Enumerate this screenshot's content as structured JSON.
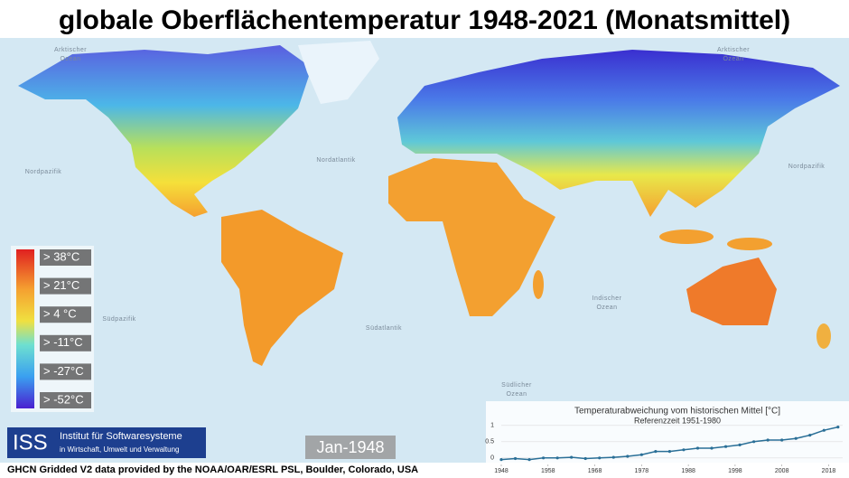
{
  "title": "globale Oberflächentemperatur 1948-2021 (Monatsmittel)",
  "map_labels": [
    [
      "Arktischer",
      "Ozean"
    ],
    [
      "Arktischer",
      "Ozean"
    ],
    [
      "Nordpazifik"
    ],
    [
      "Nordpazifik"
    ],
    [
      "Nordatlantik"
    ],
    [
      "Südpazifik"
    ],
    [
      "Südatlantik"
    ],
    [
      "Indischer",
      "Ozean"
    ],
    [
      "Südlicher",
      "Ozean"
    ]
  ],
  "legend": {
    "labels": [
      "> 38°C",
      "> 21°C",
      "> 4 °C",
      "> -11°C",
      "> -27°C",
      "> -52°C"
    ]
  },
  "logo": {
    "short": "ISS",
    "lines": [
      "Institut für Softwaresysteme",
      "in Wirtschaft, Umwelt und Verwaltung"
    ]
  },
  "date": "Jan-1948",
  "credit": "GHCN Gridded V2 data provided by the NOAA/OAR/ESRL PSL, Boulder, Colorado, USA",
  "chart_data": {
    "type": "line",
    "title": "Temperaturabweichung vom historischen Mittel [°C]",
    "subtitle": "Referenzzeit 1951-1980",
    "x": [
      1948,
      1951,
      1954,
      1957,
      1960,
      1963,
      1966,
      1969,
      1972,
      1975,
      1978,
      1981,
      1984,
      1987,
      1990,
      1993,
      1996,
      1999,
      2002,
      2005,
      2008,
      2011,
      2014,
      2017,
      2020
    ],
    "series": [
      {
        "color": "#2a6f97",
        "values": [
          -0.05,
          -0.02,
          -0.05,
          0.0,
          0.0,
          0.02,
          -0.02,
          0.0,
          0.02,
          0.05,
          0.1,
          0.2,
          0.2,
          0.25,
          0.3,
          0.3,
          0.35,
          0.4,
          0.5,
          0.55,
          0.55,
          0.6,
          0.7,
          0.85,
          0.95
        ]
      }
    ],
    "xlim": [
      1948,
      2021
    ],
    "xticks": [
      1948,
      1958,
      1968,
      1978,
      1988,
      1998,
      2008,
      2018
    ],
    "ylim": [
      -0.2,
      1.05
    ],
    "yticks": [
      0,
      0.5,
      1
    ],
    "grid": true
  }
}
